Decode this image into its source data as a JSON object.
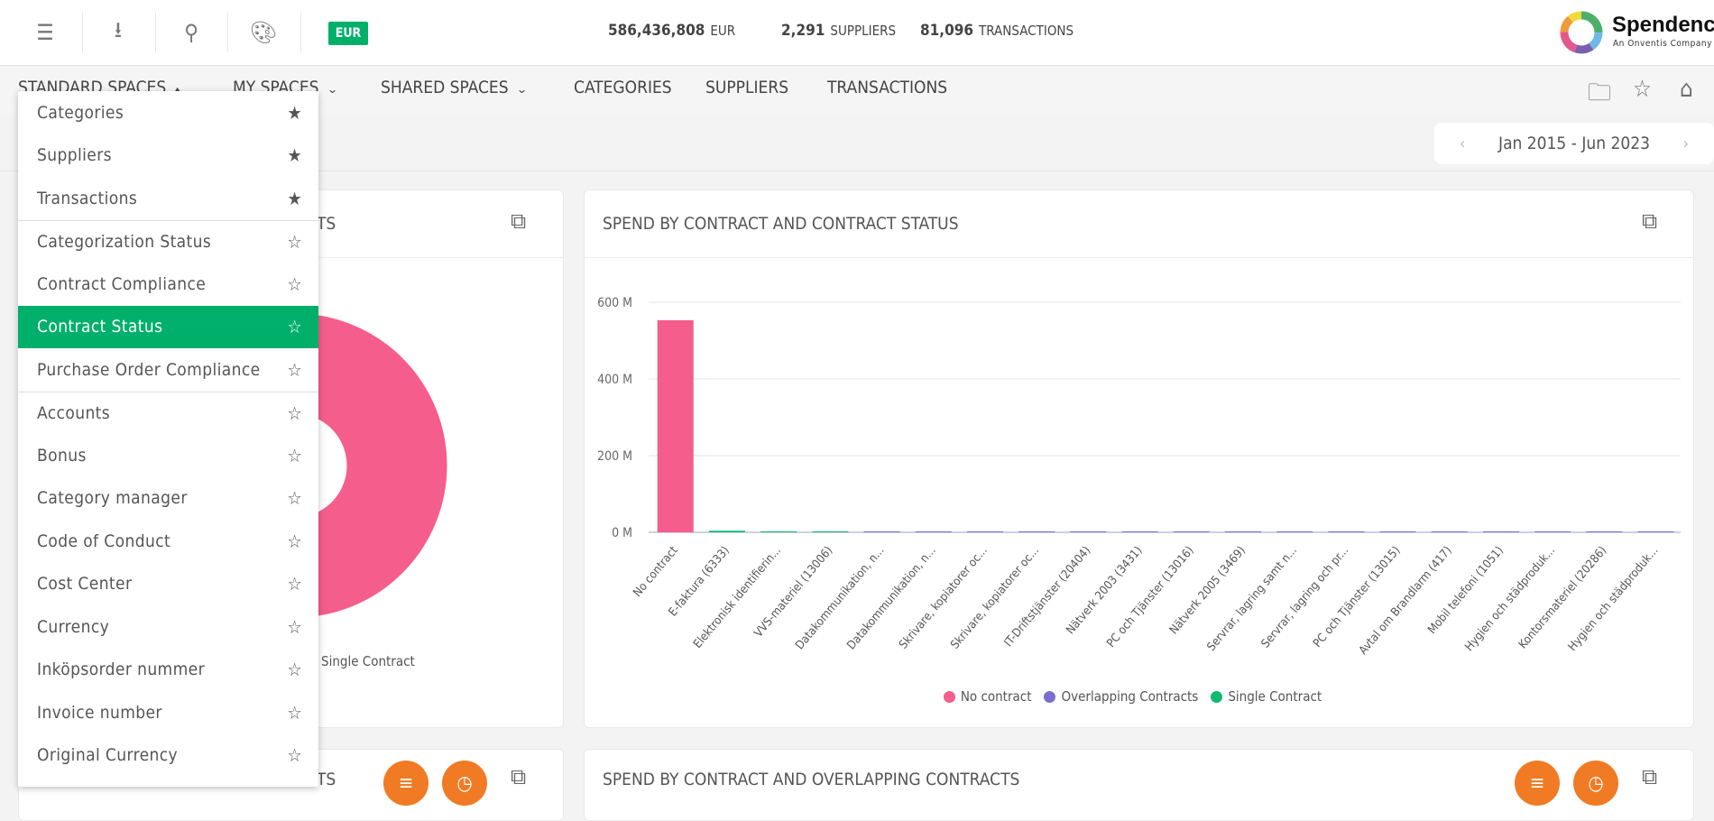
{
  "header": {
    "currency_badge": "EUR",
    "stats": [
      {
        "value": "586,436,808",
        "label": "EUR"
      },
      {
        "value": "2,291",
        "label": "SUPPLIERS"
      },
      {
        "value": "81,096",
        "label": "TRANSACTIONS"
      }
    ],
    "logo": {
      "name": "Spendency",
      "tagline": "An Onventis Company"
    }
  },
  "nav": {
    "items": [
      {
        "label": "STANDARD SPACES",
        "chevron": "▴"
      },
      {
        "label": "MY SPACES",
        "chevron": "⌄"
      },
      {
        "label": "SHARED SPACES",
        "chevron": "⌄"
      },
      {
        "label": "CATEGORIES"
      },
      {
        "label": "SUPPLIERS"
      },
      {
        "label": "TRANSACTIONS"
      }
    ]
  },
  "date_range": "Jan 2015 - Jun 2023",
  "dropdown": {
    "items": [
      {
        "label": "Categories",
        "starred": true
      },
      {
        "label": "Suppliers",
        "starred": true
      },
      {
        "label": "Transactions",
        "starred": true
      },
      {
        "label": "Categorization Status",
        "starred": false
      },
      {
        "label": "Contract Compliance",
        "starred": false
      },
      {
        "label": "Contract Status",
        "starred": false,
        "active": true
      },
      {
        "label": "Purchase Order Compliance",
        "starred": false
      },
      {
        "label": "Accounts",
        "starred": false
      },
      {
        "label": "Bonus",
        "starred": false
      },
      {
        "label": "Category manager",
        "starred": false
      },
      {
        "label": "Code of Conduct",
        "starred": false
      },
      {
        "label": "Cost Center",
        "starred": false
      },
      {
        "label": "Currency",
        "starred": false
      },
      {
        "label": "Inköpsorder nummer",
        "starred": false
      },
      {
        "label": "Invoice number",
        "starred": false
      },
      {
        "label": "Original Currency",
        "starred": false
      }
    ]
  },
  "cards": {
    "top_left": {
      "title_fragment": "TS",
      "legend_fragment": "Single Contract"
    },
    "top_right": {
      "title": "SPEND BY CONTRACT AND CONTRACT STATUS"
    },
    "bottom_left": {
      "title_fragment": "TS"
    },
    "bottom_right": {
      "title": "SPEND BY CONTRACT AND OVERLAPPING CONTRACTS"
    }
  },
  "colors": {
    "accent": "#00b06a",
    "no_contract": "#f45d8c",
    "overlapping": "#7b6fd0",
    "single": "#12b96f",
    "orange": "#f07b24"
  },
  "chart_data": {
    "type": "bar",
    "title": "SPEND BY CONTRACT AND CONTRACT STATUS",
    "ylim": [
      0,
      600
    ],
    "yticks": [
      "0 M",
      "200 M",
      "400 M",
      "600 M"
    ],
    "tick_values": [
      0,
      200,
      400,
      600
    ],
    "grid": true,
    "legend_position": "bottom",
    "categories": [
      "No contract",
      "E-faktura (6333)",
      "Elektronisk identifierin...",
      "VVS-materiel (13006)",
      "Datakommunikation, n...",
      "Datakommunikation, n...",
      "Skrivare, kopiatorer oc...",
      "Skrivare, kopiatorer oc...",
      "IT-Driftstjänster (20404)",
      "Nätverk 2003 (3431)",
      "PC och Tjänster (13016)",
      "Nätverk 2005 (3469)",
      "Servrar, lagring samt n...",
      "Servrar, lagring och pr...",
      "PC och Tjänster (13015)",
      "Avtal om Brandlarm (417)",
      "Mobil telefoni (1051)",
      "Hygien och städproduk...",
      "Kontorsmateriel (20286)",
      "Hygien och städproduk..."
    ],
    "series": [
      {
        "name": "No contract",
        "color": "#f45d8c",
        "values": [
          553,
          0,
          0,
          0,
          0,
          0,
          0,
          0,
          0,
          0,
          0,
          0,
          0,
          0,
          0,
          0,
          0,
          0,
          0,
          0
        ]
      },
      {
        "name": "Overlapping Contracts",
        "color": "#7b6fd0",
        "values": [
          0,
          0,
          0,
          0,
          0.3,
          0.3,
          0.3,
          0.3,
          0.3,
          0.3,
          0.3,
          0.3,
          0.3,
          0.3,
          0.3,
          0.3,
          0.3,
          0.3,
          0.3,
          0.3
        ]
      },
      {
        "name": "Single Contract",
        "color": "#12b96f",
        "values": [
          0,
          4,
          0.4,
          0.4,
          0,
          0,
          0,
          0,
          0,
          0,
          0,
          0,
          0,
          0,
          0,
          0,
          0,
          0,
          0,
          0
        ]
      }
    ]
  },
  "donut_data": {
    "type": "pie",
    "series": [
      {
        "name": "No contract",
        "color": "#f45d8c",
        "value": 553
      },
      {
        "name": "Single Contract",
        "color": "#12b96f",
        "value": 4
      }
    ]
  }
}
